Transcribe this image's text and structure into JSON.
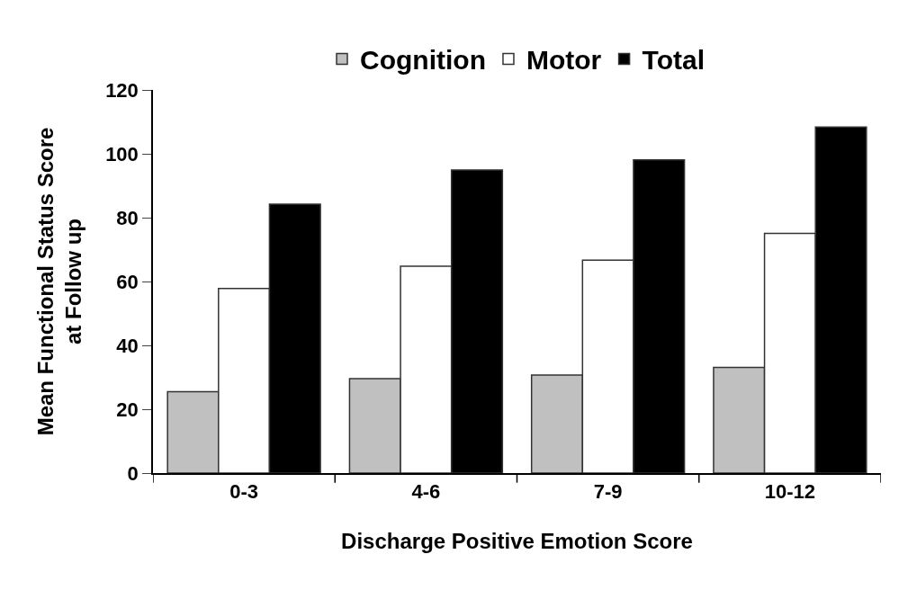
{
  "chart_data": {
    "type": "bar",
    "xlabel": "Discharge Positive Emotion Score",
    "ylabel": "Mean Functional Status Score\nat Follow up",
    "categories": [
      "0-3",
      "4-6",
      "7-9",
      "10-12"
    ],
    "series": [
      {
        "name": "Cognition",
        "color": "#c0c0c0",
        "values": [
          25.5,
          29.6,
          30.7,
          33.1
        ]
      },
      {
        "name": "Motor",
        "color": "#ffffff",
        "values": [
          57.8,
          64.8,
          66.7,
          75.1
        ]
      },
      {
        "name": "Total",
        "color": "#000000",
        "values": [
          84.2,
          94.9,
          98.1,
          108.4
        ]
      }
    ],
    "ylim": [
      0,
      120
    ],
    "yticks": [
      0,
      20,
      40,
      60,
      80,
      100,
      120
    ],
    "legend": "top"
  }
}
